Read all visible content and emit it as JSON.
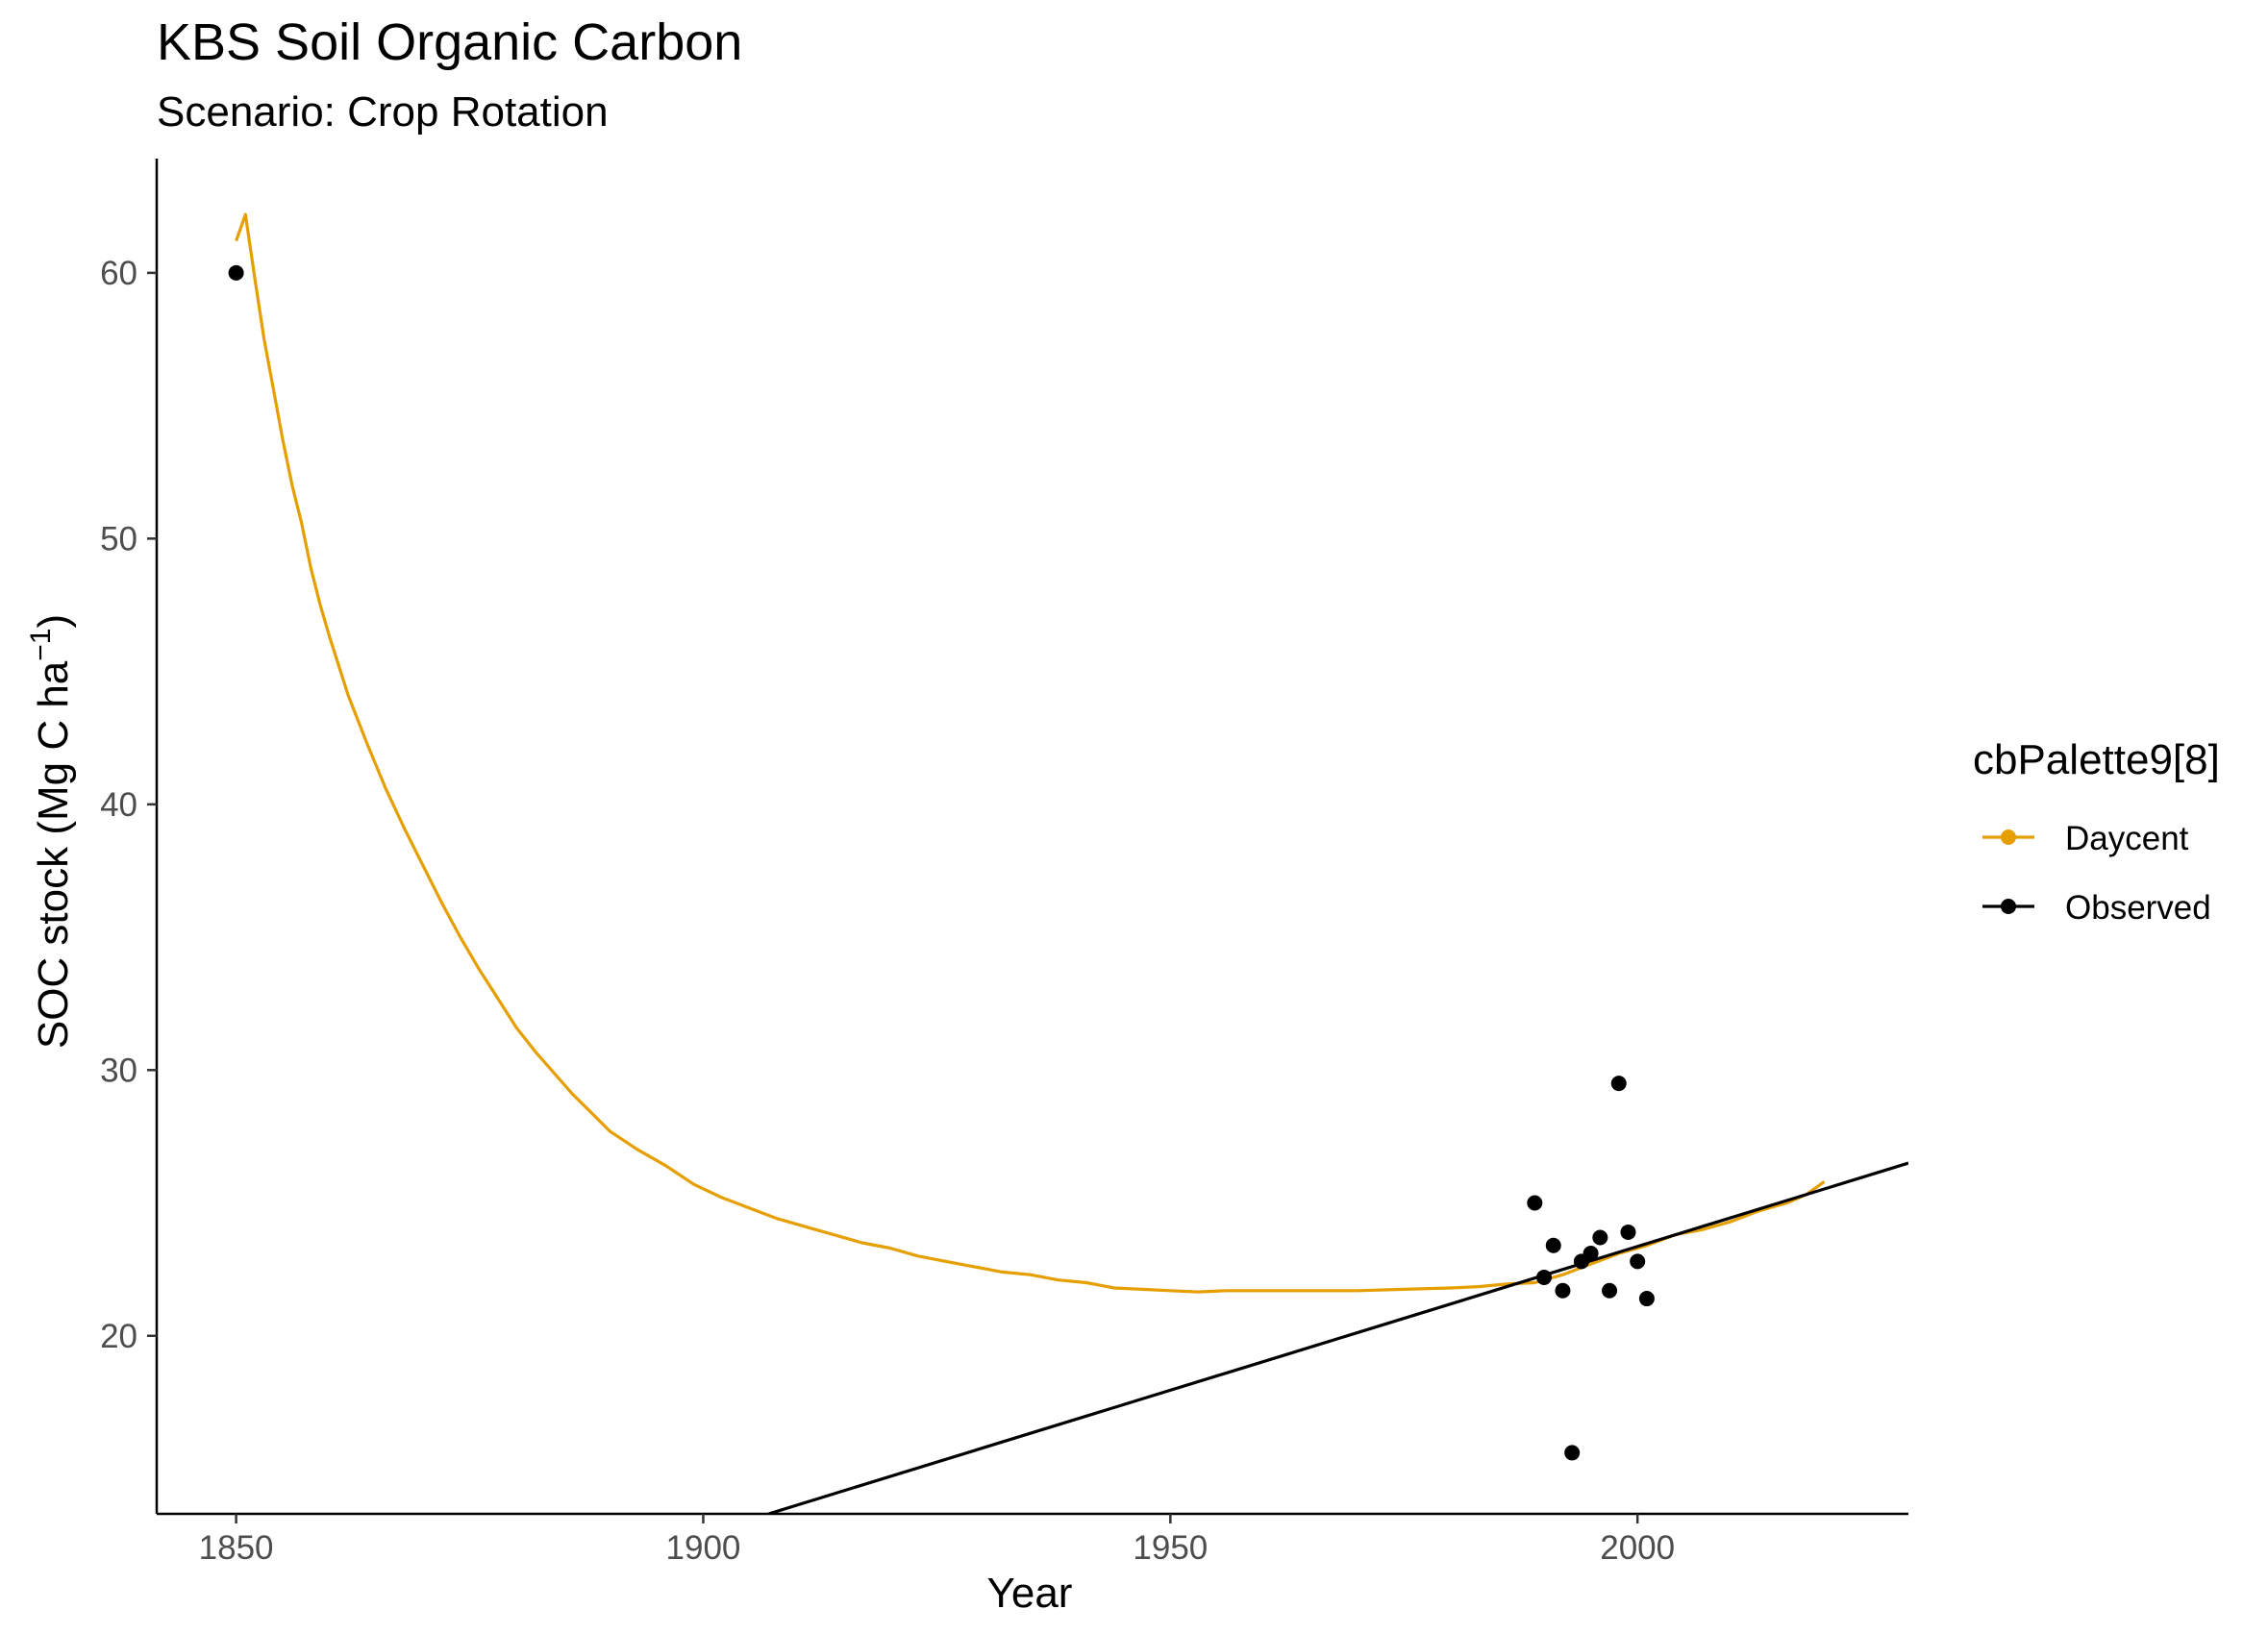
{
  "chart_data": {
    "type": "line",
    "title": "KBS Soil Organic Carbon",
    "subtitle": "Scenario: Crop Rotation",
    "xlabel": "Year",
    "ylabel_main": "SOC stock (Mg C ha",
    "ylabel_sup": "−1",
    "ylabel_close": ")",
    "xlim": [
      1841.5,
      2029
    ],
    "ylim": [
      13.3,
      64.3
    ],
    "xticks": [
      1850,
      1900,
      1950,
      2000
    ],
    "yticks": [
      20,
      30,
      40,
      50,
      60
    ],
    "grid": false,
    "legend": {
      "title": "cbPalette9[8]",
      "position": "right",
      "entries": [
        {
          "label": "Daycent",
          "color": "#E69F00"
        },
        {
          "label": "Observed",
          "color": "#000000"
        }
      ]
    },
    "series": [
      {
        "name": "Daycent",
        "color": "#E69F00",
        "type": "line",
        "points": [
          [
            1850,
            61.2
          ],
          [
            1851,
            62.2
          ],
          [
            1852,
            59.8
          ],
          [
            1853,
            57.5
          ],
          [
            1854,
            55.6
          ],
          [
            1855,
            53.7
          ],
          [
            1856,
            52.0
          ],
          [
            1857,
            50.6
          ],
          [
            1858,
            48.9
          ],
          [
            1859,
            47.5
          ],
          [
            1860,
            46.3
          ],
          [
            1862,
            44.1
          ],
          [
            1864,
            42.3
          ],
          [
            1866,
            40.6
          ],
          [
            1868,
            39.1
          ],
          [
            1870,
            37.7
          ],
          [
            1872,
            36.3
          ],
          [
            1874,
            35.0
          ],
          [
            1876,
            33.8
          ],
          [
            1878,
            32.7
          ],
          [
            1880,
            31.6
          ],
          [
            1882,
            30.7
          ],
          [
            1884,
            29.9
          ],
          [
            1886,
            29.1
          ],
          [
            1888,
            28.4
          ],
          [
            1890,
            27.7
          ],
          [
            1893,
            27.0
          ],
          [
            1896,
            26.4
          ],
          [
            1899,
            25.7
          ],
          [
            1902,
            25.2
          ],
          [
            1905,
            24.8
          ],
          [
            1908,
            24.4
          ],
          [
            1911,
            24.1
          ],
          [
            1914,
            23.8
          ],
          [
            1917,
            23.5
          ],
          [
            1920,
            23.3
          ],
          [
            1923,
            23.0
          ],
          [
            1926,
            22.8
          ],
          [
            1929,
            22.6
          ],
          [
            1932,
            22.4
          ],
          [
            1935,
            22.3
          ],
          [
            1938,
            22.1
          ],
          [
            1941,
            22.0
          ],
          [
            1944,
            21.8
          ],
          [
            1947,
            21.75
          ],
          [
            1950,
            21.7
          ],
          [
            1953,
            21.65
          ],
          [
            1956,
            21.7
          ],
          [
            1960,
            21.7
          ],
          [
            1965,
            21.7
          ],
          [
            1970,
            21.7
          ],
          [
            1975,
            21.75
          ],
          [
            1980,
            21.8
          ],
          [
            1983,
            21.85
          ],
          [
            1986,
            21.95
          ],
          [
            1989,
            22.0
          ],
          [
            1992,
            22.3
          ],
          [
            1995,
            22.7
          ],
          [
            1998,
            23.1
          ],
          [
            2001,
            23.4
          ],
          [
            2004,
            23.8
          ],
          [
            2007,
            24.0
          ],
          [
            2010,
            24.3
          ],
          [
            2013,
            24.7
          ],
          [
            2016,
            25.0
          ],
          [
            2018,
            25.3
          ],
          [
            2020,
            25.8
          ]
        ]
      },
      {
        "name": "Observed",
        "color": "#000000",
        "type": "scatter",
        "points": [
          [
            1850,
            60.0
          ],
          [
            1989,
            25.0
          ],
          [
            1990,
            22.2
          ],
          [
            1991,
            23.4
          ],
          [
            1992,
            21.7
          ],
          [
            1993,
            15.6
          ],
          [
            1994,
            22.8
          ],
          [
            1995,
            23.1
          ],
          [
            1996,
            23.7
          ],
          [
            1997,
            21.7
          ],
          [
            1998,
            29.5
          ],
          [
            1999,
            23.9
          ],
          [
            2000,
            22.8
          ],
          [
            2001,
            21.4
          ]
        ]
      },
      {
        "name": "Observed",
        "color": "#000000",
        "type": "trend-line",
        "points": [
          [
            1907,
            13.3
          ],
          [
            2029,
            26.5
          ]
        ]
      }
    ]
  }
}
